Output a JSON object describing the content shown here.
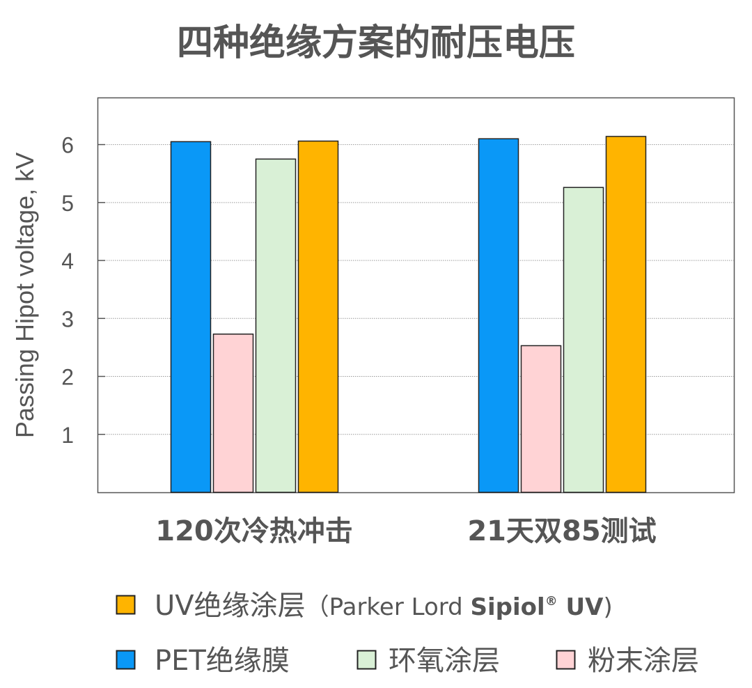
{
  "chart_data": {
    "type": "bar",
    "title": "四种绝缘方案的耐压电压",
    "ylabel": "Passing Hipot voltage, kV",
    "xlabel": "",
    "ylim": [
      0,
      6.8
    ],
    "yticks": [
      "1",
      "2",
      "3",
      "4",
      "5",
      "6"
    ],
    "grid": true,
    "categories": [
      "120次冷热冲击",
      "21天双85测试"
    ],
    "series": [
      {
        "name": "PET绝缘膜",
        "color": "#0a98f7",
        "values": [
          6.05,
          6.1
        ]
      },
      {
        "name": "粉末涂层",
        "color": "#ffd3d5",
        "values": [
          2.73,
          2.53
        ]
      },
      {
        "name": "环氧涂层",
        "color": "#d9f0d6",
        "values": [
          5.75,
          5.26
        ]
      },
      {
        "name": "UV绝缘涂层",
        "color": "#ffb400",
        "values": [
          6.06,
          6.14
        ]
      }
    ],
    "legend": {
      "placement": "bottom",
      "uv_entry": {
        "label": "UV绝缘涂层",
        "note_open": "（Parker Lord ",
        "note_bold": "Sipiol",
        "note_reg": "®",
        "note_bold2": " UV",
        "note_close": ")"
      }
    }
  }
}
